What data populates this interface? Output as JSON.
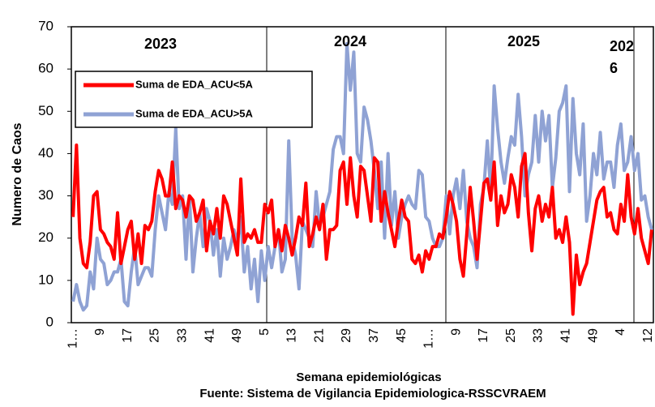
{
  "chart_data": {
    "type": "line",
    "y_label": "Numero de Caos",
    "x_label": "Semana epidemiológicas",
    "source": "Fuente: Sistema de Vigilancia Epidemiologica-RSSCVRAEM",
    "annotations": [
      "2023",
      "2024",
      "2025",
      "2026"
    ],
    "legend": "upper left",
    "ylim": [
      0,
      70
    ],
    "yticks": [
      0,
      10,
      20,
      30,
      40,
      50,
      60,
      70
    ],
    "categories": [
      "1…",
      null,
      null,
      null,
      null,
      null,
      null,
      null,
      "9",
      null,
      null,
      null,
      null,
      null,
      null,
      null,
      "17",
      null,
      null,
      null,
      null,
      null,
      null,
      null,
      "25",
      null,
      null,
      null,
      null,
      null,
      null,
      null,
      "33",
      null,
      null,
      null,
      null,
      null,
      null,
      null,
      "41",
      null,
      null,
      null,
      null,
      null,
      null,
      null,
      "49",
      null,
      null,
      null,
      null,
      null,
      null,
      null,
      "5",
      null,
      null,
      null,
      null,
      null,
      null,
      null,
      "13",
      null,
      null,
      null,
      null,
      null,
      null,
      null,
      "21",
      null,
      null,
      null,
      null,
      null,
      null,
      null,
      "29",
      null,
      null,
      null,
      null,
      null,
      null,
      null,
      "37",
      null,
      null,
      null,
      null,
      null,
      null,
      null,
      "45",
      null,
      null,
      null,
      null,
      null,
      null,
      null,
      "1…",
      null,
      null,
      null,
      null,
      null,
      null,
      null,
      "9",
      null,
      null,
      null,
      null,
      null,
      null,
      null,
      "17",
      null,
      null,
      null,
      null,
      null,
      null,
      null,
      "25",
      null,
      null,
      null,
      null,
      null,
      null,
      null,
      "33",
      null,
      null,
      null,
      null,
      null,
      null,
      null,
      "41",
      null,
      null,
      null,
      null,
      null,
      null,
      null,
      "49",
      null,
      null,
      null,
      null,
      null,
      null,
      null,
      "4",
      null,
      null,
      null,
      null,
      null,
      null,
      null,
      "12",
      null
    ],
    "series": [
      {
        "name": "Suma de EDA_ACU<5A",
        "color": "#ff0000",
        "values": [
          25,
          42,
          20,
          14,
          13,
          19,
          30,
          31,
          22,
          21,
          19,
          18,
          15,
          26,
          14,
          18,
          22,
          24,
          15,
          21,
          14,
          23,
          22,
          24,
          31,
          36,
          34,
          30,
          30,
          38,
          27,
          30,
          29,
          25,
          30,
          29,
          24,
          26,
          29,
          17,
          24,
          21,
          27,
          20,
          30,
          28,
          24,
          20,
          16,
          34,
          19,
          21,
          20,
          22,
          19,
          19,
          28,
          26,
          29,
          18,
          22,
          17,
          23,
          20,
          16,
          20,
          25,
          23,
          33,
          18,
          21,
          25,
          22,
          28,
          15,
          22,
          22,
          23,
          36,
          38,
          28,
          39,
          30,
          25,
          37,
          36,
          30,
          24,
          39,
          38,
          24,
          31,
          26,
          22,
          18,
          24,
          29,
          25,
          24,
          15,
          14,
          16,
          12,
          17,
          15,
          18,
          18,
          21,
          20,
          25,
          31,
          28,
          24,
          15,
          11,
          21,
          32,
          24,
          15,
          24,
          33,
          34,
          29,
          38,
          23,
          30,
          26,
          28,
          35,
          32,
          25,
          37,
          40,
          26,
          17,
          27,
          30,
          24,
          28,
          25,
          32,
          20,
          22,
          19,
          25,
          19,
          2,
          16,
          9,
          12,
          14,
          19,
          24,
          29,
          31,
          32,
          25,
          26,
          22,
          21,
          28,
          24,
          35,
          25,
          21,
          27,
          20,
          17,
          14,
          22
        ]
      },
      {
        "name": "Suma de EDA_ACU>5A",
        "color": "#8fa2d4",
        "values": [
          5,
          9,
          5,
          3,
          4,
          12,
          8,
          20,
          15,
          14,
          9,
          10,
          12,
          12,
          15,
          5,
          4,
          12,
          18,
          9,
          11,
          13,
          13,
          11,
          22,
          30,
          26,
          22,
          31,
          28,
          46,
          27,
          30,
          15,
          30,
          12,
          20,
          26,
          18,
          27,
          24,
          16,
          22,
          11,
          20,
          15,
          18,
          22,
          19,
          25,
          12,
          18,
          8,
          15,
          5,
          17,
          10,
          18,
          13,
          18,
          22,
          12,
          15,
          43,
          20,
          16,
          8,
          24,
          22,
          20,
          18,
          31,
          23,
          25,
          28,
          31,
          41,
          44,
          44,
          40,
          66,
          55,
          64,
          40,
          38,
          51,
          48,
          43,
          36,
          27,
          38,
          20,
          40,
          23,
          31,
          20,
          25,
          28,
          30,
          28,
          27,
          36,
          35,
          25,
          24,
          20,
          18,
          18,
          20,
          30,
          21,
          30,
          34,
          27,
          36,
          24,
          20,
          18,
          13,
          28,
          32,
          43,
          31,
          56,
          46,
          38,
          33,
          39,
          44,
          42,
          54,
          44,
          30,
          35,
          38,
          49,
          38,
          50,
          43,
          49,
          32,
          39,
          50,
          52,
          56,
          31,
          53,
          40,
          35,
          47,
          24,
          30,
          40,
          35,
          45,
          34,
          38,
          38,
          32,
          42,
          47,
          36,
          38,
          44,
          36,
          40,
          29,
          30,
          25,
          22
        ]
      }
    ]
  }
}
